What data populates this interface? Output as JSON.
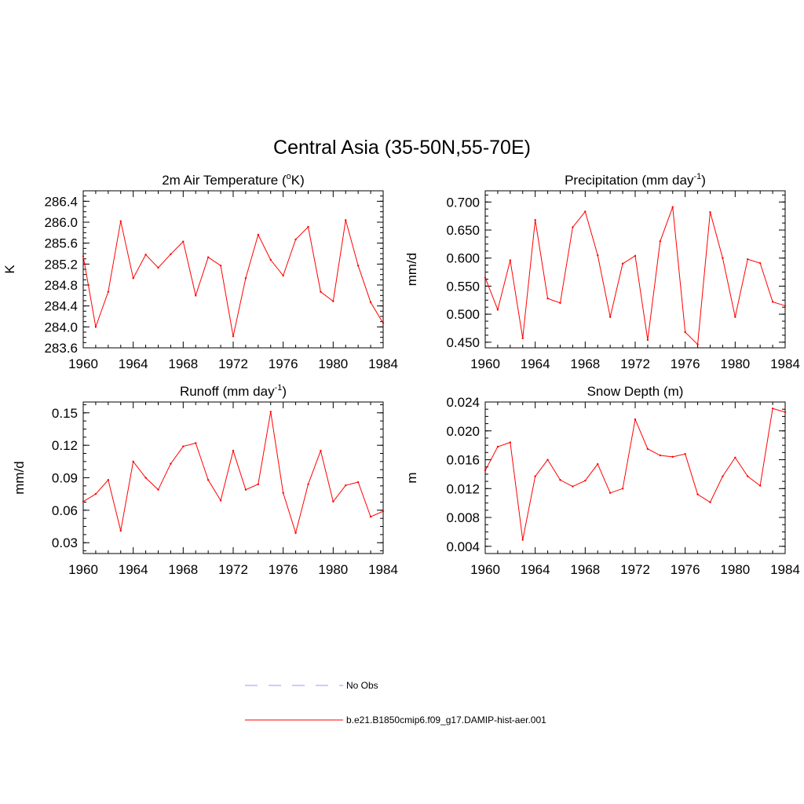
{
  "main_title": "Central Asia (35-50N,55-70E)",
  "legend": [
    {
      "label": "No Obs",
      "color": "#9999ff",
      "dash": true
    },
    {
      "label": "b.e21.B1850cmip6.f09_g17.DAMIP-hist-aer.001",
      "color": "#ff0000",
      "dash": false
    }
  ],
  "chart_data": [
    {
      "type": "line",
      "title": "2m Air Temperature (oK)",
      "title_parts": {
        "pre": "2m Air Temperature (",
        "sup": "o",
        "post": "K)"
      },
      "ylabel": "K",
      "x": [
        1960,
        1961,
        1962,
        1963,
        1964,
        1965,
        1966,
        1967,
        1968,
        1969,
        1970,
        1971,
        1972,
        1973,
        1974,
        1975,
        1976,
        1977,
        1978,
        1979,
        1980,
        1981,
        1982,
        1983,
        1984
      ],
      "values": [
        285.35,
        284.0,
        284.67,
        286.02,
        284.93,
        285.38,
        285.13,
        285.39,
        285.63,
        284.6,
        285.33,
        285.17,
        283.82,
        284.93,
        285.76,
        285.28,
        284.98,
        285.67,
        285.91,
        284.67,
        284.49,
        286.04,
        285.17,
        284.47,
        284.07
      ],
      "xlim": [
        1960,
        1984
      ],
      "ylim": [
        283.6,
        286.6
      ],
      "xticks": [
        1960,
        1964,
        1968,
        1972,
        1976,
        1980,
        1984
      ],
      "yticks": [
        283.6,
        284.0,
        284.4,
        284.8,
        285.2,
        285.6,
        286.0,
        286.4
      ],
      "ytick_labels": [
        "283.6",
        "284.0",
        "284.4",
        "284.8",
        "285.2",
        "285.6",
        "286.0",
        "286.4"
      ],
      "color": "#ff0000"
    },
    {
      "type": "line",
      "title": "Precipitation (mm day-1)",
      "title_parts": {
        "pre": "Precipitation (mm day",
        "sup": "-1",
        "post": ")"
      },
      "ylabel": "mm/d",
      "x": [
        1960,
        1961,
        1962,
        1963,
        1964,
        1965,
        1966,
        1967,
        1968,
        1969,
        1970,
        1971,
        1972,
        1973,
        1974,
        1975,
        1976,
        1977,
        1978,
        1979,
        1980,
        1981,
        1982,
        1983,
        1984
      ],
      "values": [
        0.565,
        0.508,
        0.596,
        0.457,
        0.668,
        0.528,
        0.52,
        0.655,
        0.683,
        0.605,
        0.495,
        0.59,
        0.604,
        0.454,
        0.63,
        0.691,
        0.468,
        0.446,
        0.682,
        0.6,
        0.495,
        0.598,
        0.591,
        0.522,
        0.515
      ],
      "xlim": [
        1960,
        1984
      ],
      "ylim": [
        0.44,
        0.72
      ],
      "xticks": [
        1960,
        1964,
        1968,
        1972,
        1976,
        1980,
        1984
      ],
      "yticks": [
        0.45,
        0.5,
        0.55,
        0.6,
        0.65,
        0.7
      ],
      "ytick_labels": [
        "0.450",
        "0.500",
        "0.550",
        "0.600",
        "0.650",
        "0.700"
      ],
      "color": "#ff0000"
    },
    {
      "type": "line",
      "title": "Runoff (mm day-1)",
      "title_parts": {
        "pre": "Runoff (mm day",
        "sup": "-1",
        "post": ")"
      },
      "ylabel": "mm/d",
      "x": [
        1960,
        1961,
        1962,
        1963,
        1964,
        1965,
        1966,
        1967,
        1968,
        1969,
        1970,
        1971,
        1972,
        1973,
        1974,
        1975,
        1976,
        1977,
        1978,
        1979,
        1980,
        1981,
        1982,
        1983,
        1984
      ],
      "values": [
        0.068,
        0.075,
        0.088,
        0.041,
        0.105,
        0.09,
        0.079,
        0.103,
        0.119,
        0.122,
        0.088,
        0.069,
        0.115,
        0.079,
        0.084,
        0.151,
        0.076,
        0.039,
        0.084,
        0.115,
        0.068,
        0.083,
        0.086,
        0.054,
        0.059
      ],
      "xlim": [
        1960,
        1984
      ],
      "ylim": [
        0.02,
        0.16
      ],
      "xticks": [
        1960,
        1964,
        1968,
        1972,
        1976,
        1980,
        1984
      ],
      "yticks": [
        0.03,
        0.06,
        0.09,
        0.12,
        0.15
      ],
      "ytick_labels": [
        "0.03",
        "0.06",
        "0.09",
        "0.12",
        "0.15"
      ],
      "color": "#ff0000"
    },
    {
      "type": "line",
      "title": "Snow Depth (m)",
      "title_parts": {
        "pre": "Snow Depth (m)",
        "sup": "",
        "post": ""
      },
      "ylabel": "m",
      "x": [
        1960,
        1961,
        1962,
        1963,
        1964,
        1965,
        1966,
        1967,
        1968,
        1969,
        1970,
        1971,
        1972,
        1973,
        1974,
        1975,
        1976,
        1977,
        1978,
        1979,
        1980,
        1981,
        1982,
        1983,
        1984
      ],
      "values": [
        0.0145,
        0.0178,
        0.0184,
        0.0049,
        0.0137,
        0.016,
        0.0132,
        0.0123,
        0.0131,
        0.0154,
        0.0114,
        0.012,
        0.0216,
        0.0175,
        0.0166,
        0.0164,
        0.0168,
        0.0112,
        0.0101,
        0.0137,
        0.0163,
        0.0137,
        0.0124,
        0.0231,
        0.0226
      ],
      "xlim": [
        1960,
        1984
      ],
      "ylim": [
        0.003,
        0.024
      ],
      "xticks": [
        1960,
        1964,
        1968,
        1972,
        1976,
        1980,
        1984
      ],
      "yticks": [
        0.004,
        0.008,
        0.012,
        0.016,
        0.02,
        0.024
      ],
      "ytick_labels": [
        "0.004",
        "0.008",
        "0.012",
        "0.016",
        "0.020",
        "0.024"
      ],
      "color": "#ff0000"
    }
  ]
}
